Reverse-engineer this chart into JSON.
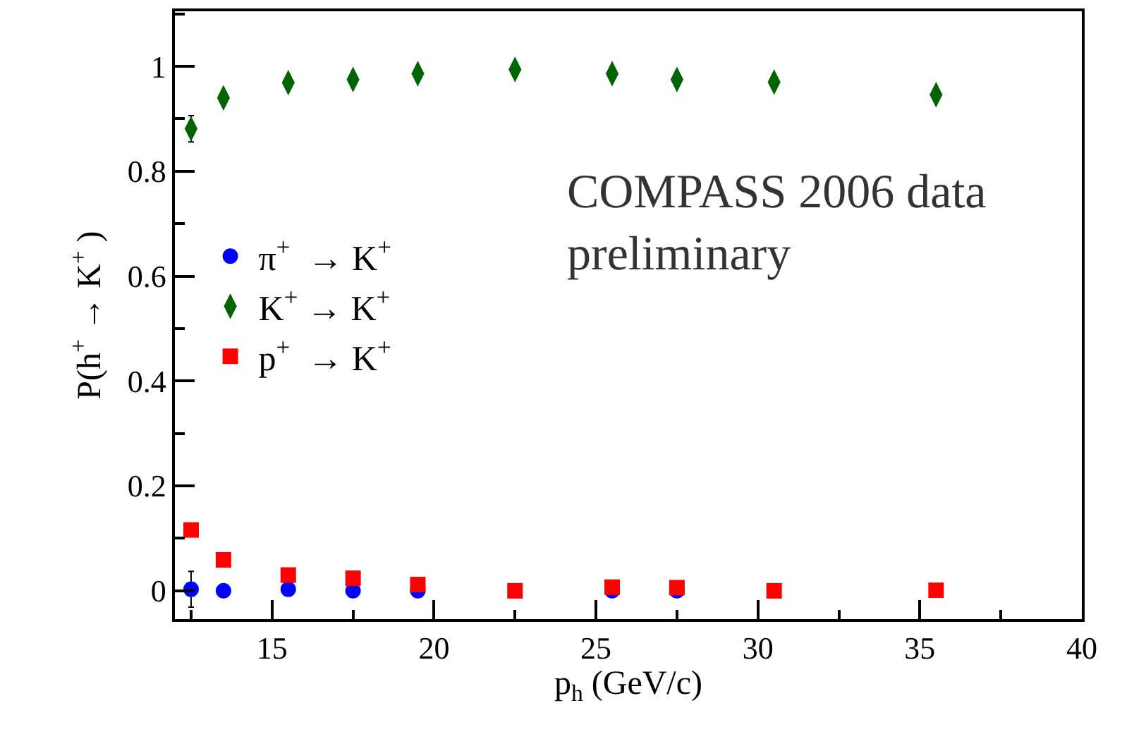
{
  "chart_data": {
    "type": "scatter",
    "xlabel": "p$_{h}$ (GeV/c)",
    "ylabel": "P(h$^{+}$ → K$^{+}$ )",
    "x": [
      12.5,
      13.5,
      15.5,
      17.5,
      19.5,
      22.5,
      25.5,
      27.5,
      30.5,
      35.5
    ],
    "series": [
      {
        "name": "π$^{+}$  → K$^{+}$",
        "color": "#0000ff",
        "marker": "circle",
        "values": [
          0.003,
          0,
          0.003,
          0,
          0,
          null,
          0,
          0,
          null,
          null
        ],
        "errors": [
          0.034,
          null,
          null,
          null,
          null,
          null,
          null,
          null,
          null,
          null
        ]
      },
      {
        "name": "K$^{+}$ → K$^{+}$",
        "color": "#006400",
        "marker": "diamond",
        "values": [
          0.881,
          0.94,
          0.969,
          0.975,
          0.986,
          0.994,
          0.986,
          0.975,
          0.97,
          0.946
        ],
        "errors": [
          0.025,
          null,
          null,
          null,
          null,
          null,
          null,
          null,
          null,
          null
        ]
      },
      {
        "name": "p$^{+}$  → K$^{+}$",
        "color": "#ff0000",
        "marker": "square",
        "values": [
          0.116,
          0.059,
          0.03,
          0.024,
          0.012,
          0,
          0.007,
          0.006,
          0,
          0.001
        ]
      }
    ],
    "xlim": [
      12,
      40
    ],
    "xticks": [
      15,
      20,
      25,
      30,
      35,
      40
    ],
    "ylim": [
      -0.054,
      1.105
    ],
    "yticks": [
      0,
      0.2,
      0.4,
      0.6,
      0.8,
      1
    ],
    "grid": false,
    "legend": "left",
    "annotations": [
      "COMPASS 2006 data\npreliminary"
    ]
  }
}
